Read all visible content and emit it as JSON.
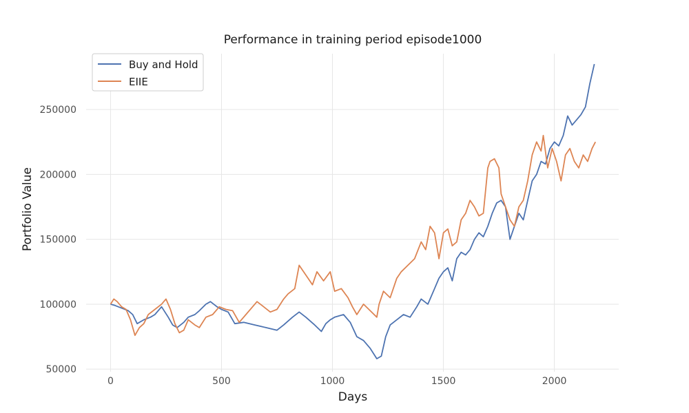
{
  "chart_data": {
    "type": "line",
    "title": "Performance in training period episode1000",
    "xlabel": "Days",
    "ylabel": "Portfolio Value",
    "xlim": [
      -110,
      2290
    ],
    "ylim": [
      48000,
      293000
    ],
    "xticks": [
      0,
      500,
      1000,
      1500,
      2000
    ],
    "yticks": [
      50000,
      100000,
      150000,
      200000,
      250000
    ],
    "xtick_labels": [
      "0",
      "500",
      "1000",
      "1500",
      "2000"
    ],
    "ytick_labels": [
      "50000",
      "100000",
      "150000",
      "200000",
      "250000"
    ],
    "grid": true,
    "legend_position": "top-left",
    "series": [
      {
        "name": "Buy and Hold",
        "color": "#4c72b0",
        "x": [
          0,
          20,
          50,
          80,
          100,
          120,
          150,
          180,
          200,
          230,
          260,
          280,
          300,
          330,
          350,
          380,
          400,
          430,
          450,
          480,
          500,
          530,
          560,
          600,
          650,
          700,
          750,
          780,
          820,
          850,
          880,
          920,
          950,
          970,
          990,
          1010,
          1050,
          1080,
          1110,
          1140,
          1170,
          1200,
          1220,
          1240,
          1260,
          1290,
          1320,
          1350,
          1380,
          1400,
          1430,
          1460,
          1480,
          1500,
          1520,
          1540,
          1560,
          1580,
          1600,
          1620,
          1640,
          1660,
          1680,
          1700,
          1720,
          1740,
          1760,
          1780,
          1800,
          1820,
          1840,
          1860,
          1880,
          1900,
          1920,
          1940,
          1960,
          1980,
          2000,
          2020,
          2040,
          2060,
          2080,
          2100,
          2120,
          2140,
          2160,
          2180
        ],
        "y": [
          100000,
          99000,
          97000,
          95000,
          92000,
          85000,
          88000,
          90000,
          92000,
          98000,
          90000,
          84000,
          82000,
          86000,
          90000,
          92000,
          95000,
          100000,
          102000,
          98000,
          96000,
          94000,
          85000,
          86000,
          84000,
          82000,
          80000,
          84000,
          90000,
          94000,
          90000,
          84000,
          79000,
          85000,
          88000,
          90000,
          92000,
          86000,
          75000,
          72000,
          66000,
          58000,
          60000,
          75000,
          84000,
          88000,
          92000,
          90000,
          98000,
          104000,
          100000,
          112000,
          120000,
          125000,
          128000,
          118000,
          135000,
          140000,
          138000,
          142000,
          150000,
          155000,
          152000,
          160000,
          170000,
          178000,
          180000,
          175000,
          150000,
          160000,
          170000,
          165000,
          180000,
          195000,
          200000,
          210000,
          208000,
          220000,
          225000,
          222000,
          230000,
          245000,
          238000,
          242000,
          246000,
          252000,
          270000,
          285000
        ]
      },
      {
        "name": "EIIE",
        "color": "#dd8452",
        "x": [
          0,
          15,
          30,
          50,
          70,
          90,
          110,
          130,
          150,
          170,
          200,
          230,
          250,
          270,
          290,
          310,
          330,
          350,
          380,
          400,
          430,
          460,
          490,
          520,
          550,
          580,
          610,
          640,
          660,
          690,
          720,
          750,
          780,
          800,
          830,
          850,
          870,
          890,
          910,
          930,
          960,
          990,
          1010,
          1040,
          1070,
          1090,
          1110,
          1140,
          1170,
          1200,
          1210,
          1230,
          1260,
          1290,
          1310,
          1340,
          1370,
          1400,
          1420,
          1440,
          1460,
          1480,
          1500,
          1520,
          1540,
          1560,
          1580,
          1600,
          1620,
          1640,
          1660,
          1680,
          1700,
          1710,
          1730,
          1750,
          1760,
          1780,
          1800,
          1820,
          1840,
          1860,
          1880,
          1900,
          1920,
          1940,
          1950,
          1970,
          1990,
          2010,
          2030,
          2050,
          2070,
          2090,
          2110,
          2130,
          2150,
          2170,
          2185
        ],
        "y": [
          100000,
          104000,
          102000,
          98000,
          96000,
          88000,
          76000,
          82000,
          85000,
          92000,
          96000,
          100000,
          104000,
          96000,
          85000,
          78000,
          80000,
          88000,
          84000,
          82000,
          90000,
          92000,
          98000,
          96000,
          95000,
          86000,
          92000,
          98000,
          102000,
          98000,
          94000,
          96000,
          104000,
          108000,
          112000,
          130000,
          125000,
          120000,
          115000,
          125000,
          118000,
          125000,
          110000,
          112000,
          105000,
          98000,
          92000,
          100000,
          95000,
          90000,
          100000,
          110000,
          105000,
          120000,
          125000,
          130000,
          135000,
          148000,
          142000,
          160000,
          155000,
          135000,
          155000,
          158000,
          145000,
          148000,
          165000,
          170000,
          180000,
          175000,
          168000,
          170000,
          205000,
          210000,
          212000,
          205000,
          185000,
          175000,
          165000,
          160000,
          175000,
          180000,
          195000,
          215000,
          225000,
          218000,
          230000,
          205000,
          220000,
          210000,
          195000,
          215000,
          220000,
          210000,
          205000,
          215000,
          210000,
          220000,
          225000
        ]
      }
    ]
  }
}
